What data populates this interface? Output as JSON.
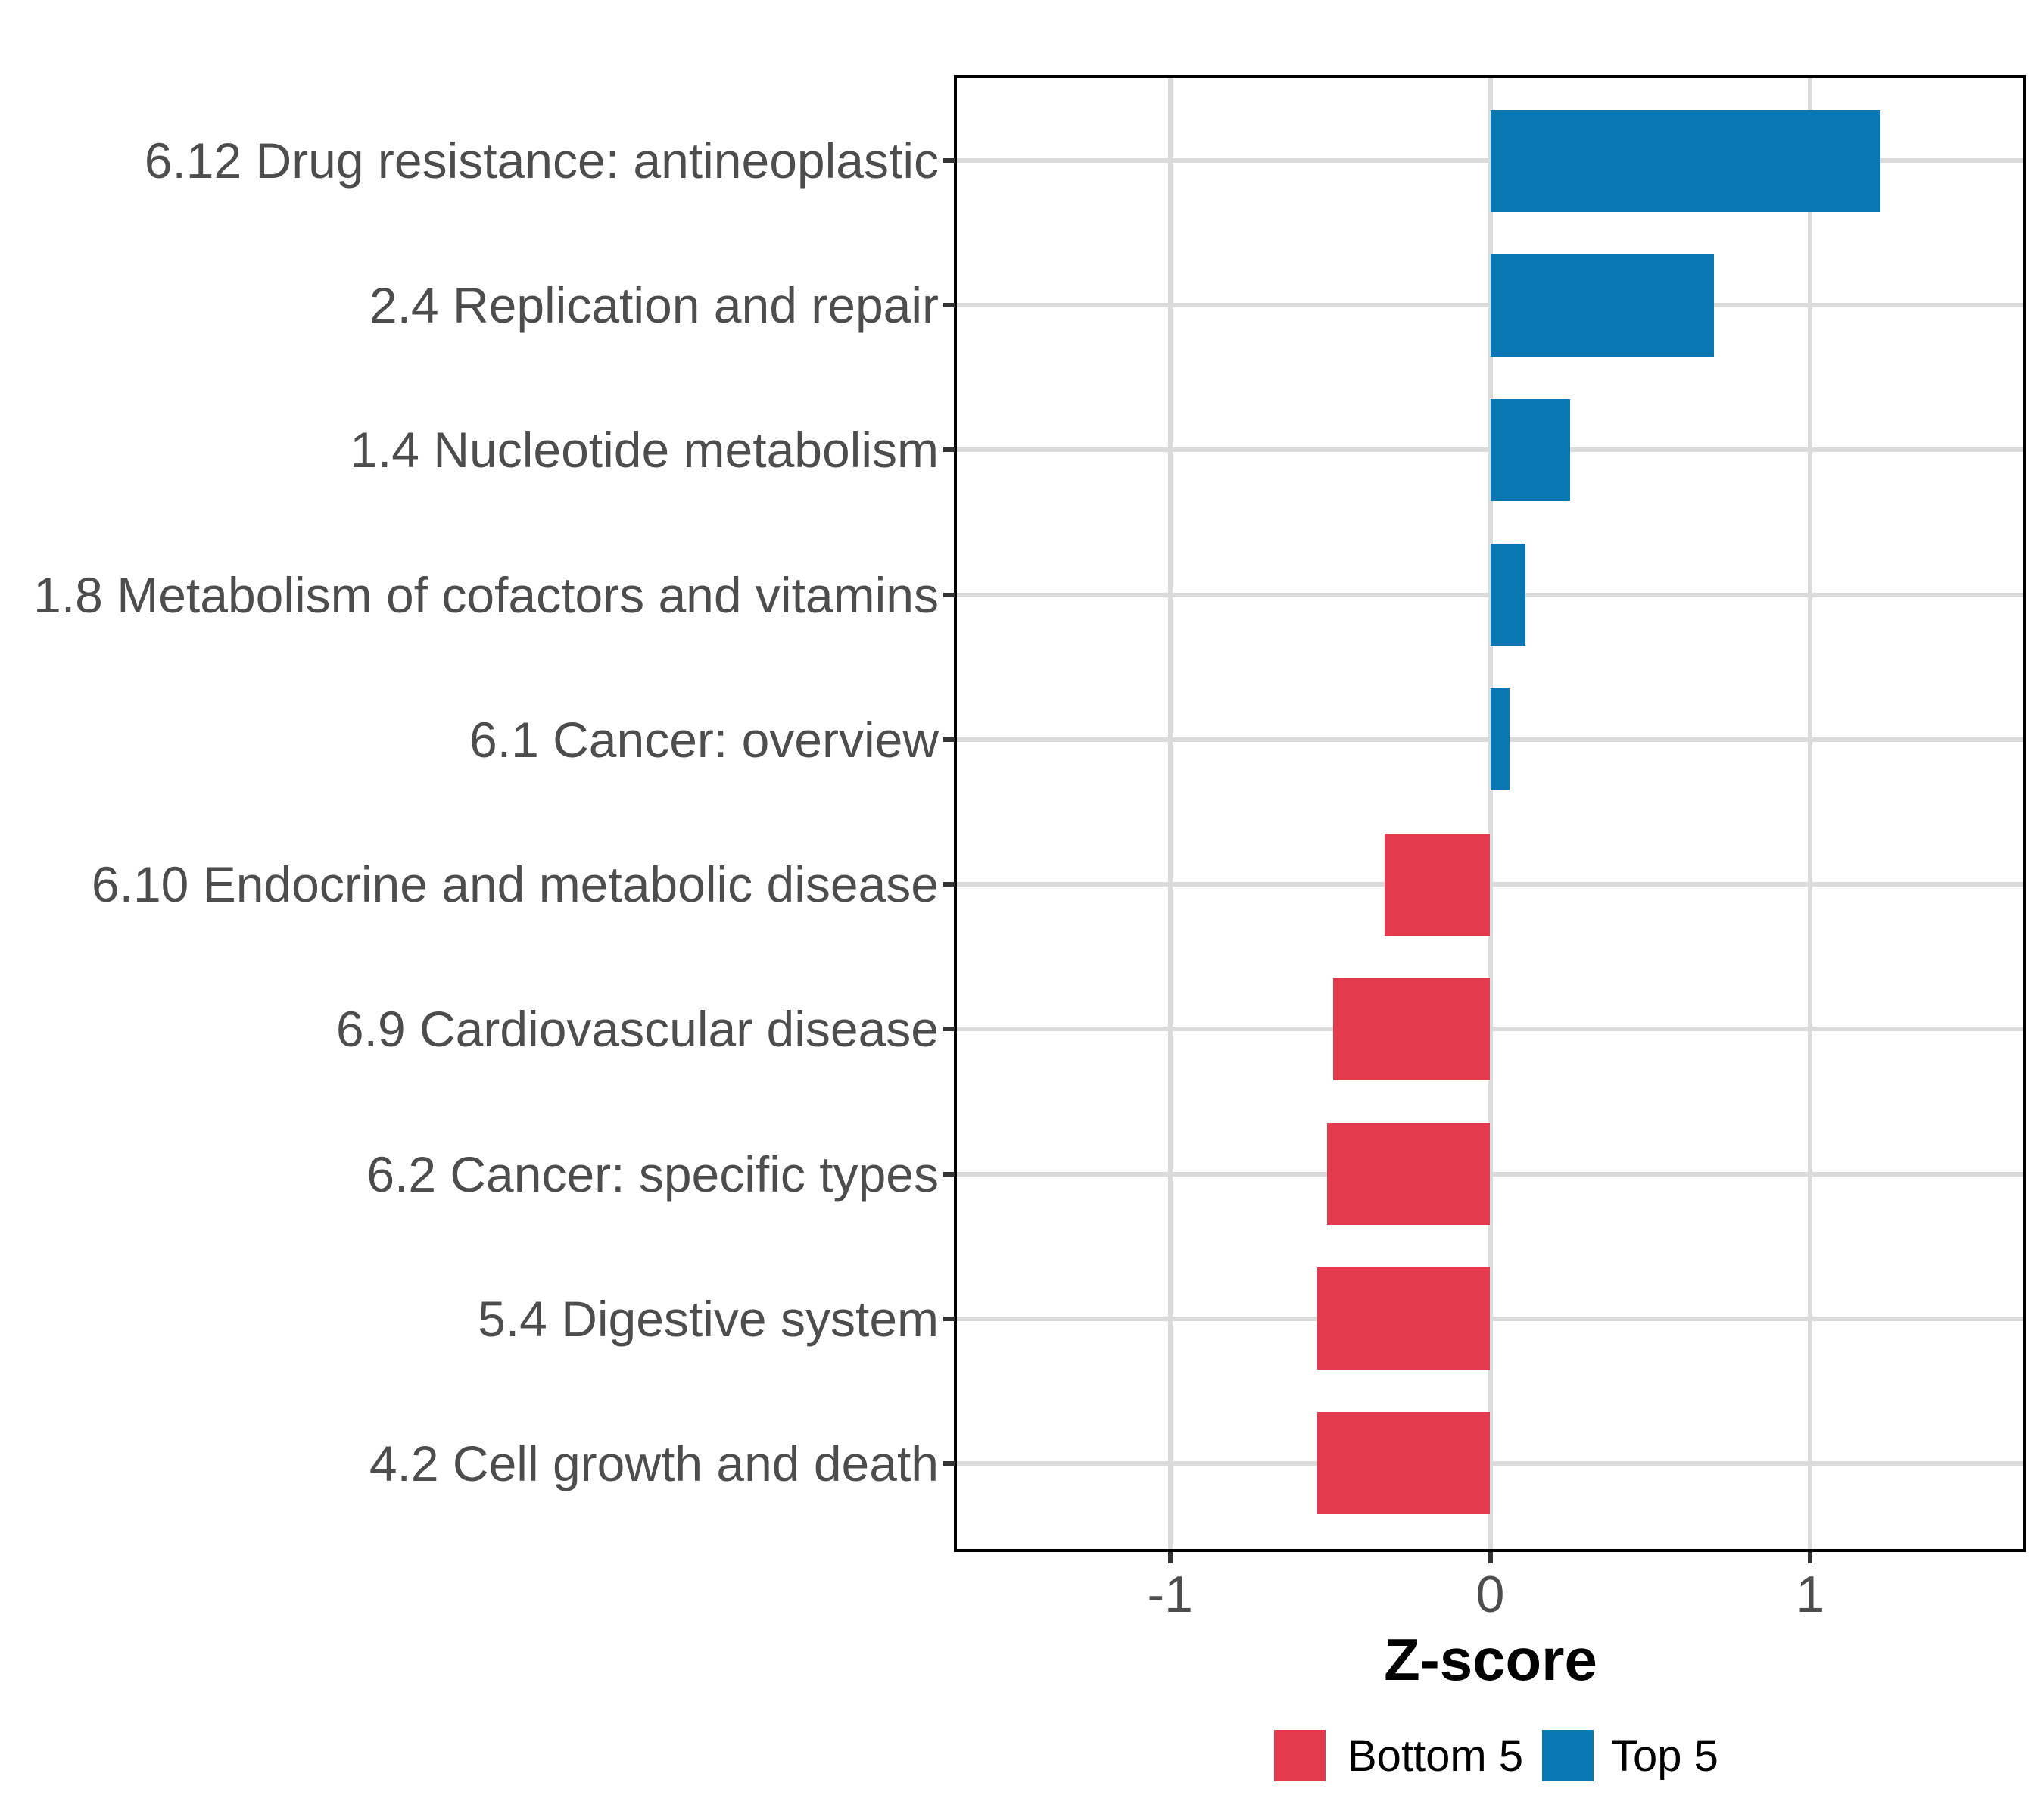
{
  "chart_data": {
    "type": "bar",
    "orientation": "horizontal",
    "title": "",
    "xlabel": "Z-score",
    "ylabel": "",
    "xlim": [
      -1.67,
      1.67
    ],
    "x_tick_values": [
      -1,
      0,
      1
    ],
    "x_tick_labels": [
      "-1",
      "0",
      "1"
    ],
    "grid": true,
    "legend_position": "bottom",
    "categories": [
      "6.12 Drug resistance: antineoplastic",
      "2.4 Replication and repair",
      "1.4 Nucleotide metabolism",
      "1.8 Metabolism of cofactors and vitamins",
      "6.1 Cancer: overview",
      "6.10 Endocrine and metabolic disease",
      "6.9 Cardiovascular disease",
      "6.2 Cancer: specific types",
      "5.4 Digestive system",
      "4.2 Cell growth and death"
    ],
    "values": [
      1.22,
      0.7,
      0.25,
      0.11,
      0.06,
      -0.33,
      -0.49,
      -0.51,
      -0.54,
      -0.54
    ],
    "group": [
      "Top 5",
      "Top 5",
      "Top 5",
      "Top 5",
      "Top 5",
      "Bottom 5",
      "Bottom 5",
      "Bottom 5",
      "Bottom 5",
      "Bottom 5"
    ],
    "colors": {
      "Top 5": "#0877B2",
      "Bottom 5": "#E33B4D"
    },
    "legend": [
      {
        "label": "Bottom 5",
        "color": "#E33B4D"
      },
      {
        "label": "Top 5",
        "color": "#0877B2"
      }
    ]
  }
}
